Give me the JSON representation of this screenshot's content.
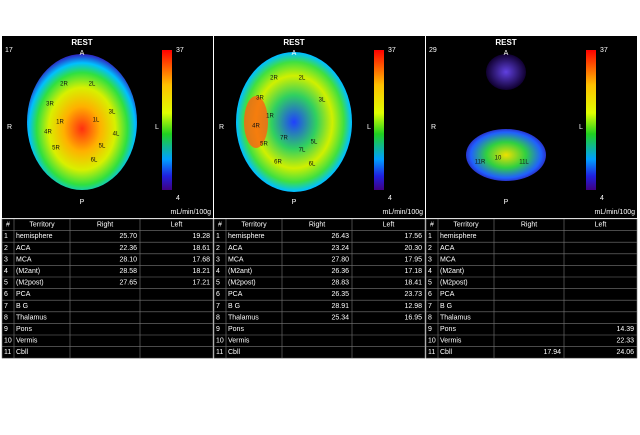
{
  "panels": [
    {
      "slice": "17",
      "title": "REST",
      "orientation": {
        "anterior": "A",
        "posterior": "P",
        "right": "R",
        "left": "L"
      },
      "scale": {
        "max": "37",
        "min": "4",
        "unit": "mL/min/100g"
      },
      "regions": [
        "2R",
        "2L",
        "3R",
        "1R",
        "1L",
        "4R",
        "3L",
        "5R",
        "5L",
        "4L",
        "6L"
      ],
      "table": {
        "columns": [
          "#",
          "Territory",
          "Right",
          "Left"
        ],
        "rows": [
          [
            "1",
            "hemisphere",
            "25.70",
            "19.28"
          ],
          [
            "2",
            "ACA",
            "22.36",
            "18.61"
          ],
          [
            "3",
            "MCA",
            "28.10",
            "17.68"
          ],
          [
            "4",
            "(M2ant)",
            "28.58",
            "18.21"
          ],
          [
            "5",
            "(M2post)",
            "27.65",
            "17.21"
          ],
          [
            "6",
            "PCA",
            null,
            null
          ],
          [
            "7",
            "B G",
            null,
            null
          ],
          [
            "8",
            "Thalamus",
            null,
            null
          ],
          [
            "9",
            "Pons",
            null,
            null
          ],
          [
            "10",
            "Vermis",
            null,
            null
          ],
          [
            "11",
            "Cbll",
            null,
            null
          ]
        ]
      }
    },
    {
      "title": "REST",
      "orientation": {
        "anterior": "A",
        "posterior": "P",
        "right": "R",
        "left": "L"
      },
      "scale": {
        "max": "37",
        "min": "4",
        "unit": "mL/min/100g"
      },
      "regions": [
        "2R",
        "2L",
        "3R",
        "1R",
        "3L",
        "4R",
        "5R",
        "6R",
        "5L",
        "7R",
        "7L",
        "6L"
      ],
      "table": {
        "columns": [
          "#",
          "Territory",
          "Right",
          "Left"
        ],
        "rows": [
          [
            "1",
            "hemisphere",
            "26.43",
            "17.56"
          ],
          [
            "2",
            "ACA",
            "23.24",
            "20.30"
          ],
          [
            "3",
            "MCA",
            "27.80",
            "17.95"
          ],
          [
            "4",
            "(M2ant)",
            "26.36",
            "17.18"
          ],
          [
            "5",
            "(M2post)",
            "28.83",
            "18.41"
          ],
          [
            "6",
            "PCA",
            "26.35",
            "23.73"
          ],
          [
            "7",
            "B G",
            "28.91",
            "12.98"
          ],
          [
            "8",
            "Thalamus",
            "25.34",
            "16.95"
          ],
          [
            "9",
            "Pons",
            null,
            null
          ],
          [
            "10",
            "Vermis",
            null,
            null
          ],
          [
            "11",
            "Cbll",
            null,
            null
          ]
        ]
      }
    },
    {
      "slice": "29",
      "title": "REST",
      "orientation": {
        "anterior": "A",
        "posterior": "P",
        "right": "R",
        "left": "L"
      },
      "scale": {
        "max": "37",
        "min": "4",
        "unit": "mL/min/100g"
      },
      "regions": [
        "10",
        "11R",
        "11L"
      ],
      "table": {
        "columns": [
          "#",
          "Territory",
          "Right",
          "Left"
        ],
        "rows": [
          [
            "1",
            "hemisphere",
            null,
            null
          ],
          [
            "2",
            "ACA",
            null,
            null
          ],
          [
            "3",
            "MCA",
            null,
            null
          ],
          [
            "4",
            "(M2ant)",
            null,
            null
          ],
          [
            "5",
            "(M2post)",
            null,
            null
          ],
          [
            "6",
            "PCA",
            null,
            null
          ],
          [
            "7",
            "B G",
            null,
            null
          ],
          [
            "8",
            "Thalamus",
            null,
            null
          ],
          [
            "9",
            "Pons",
            null,
            "14.39"
          ],
          [
            "10",
            "Vermis",
            null,
            "22.33"
          ],
          [
            "11",
            "Cbll",
            "17.94",
            "24.06"
          ]
        ]
      }
    }
  ]
}
